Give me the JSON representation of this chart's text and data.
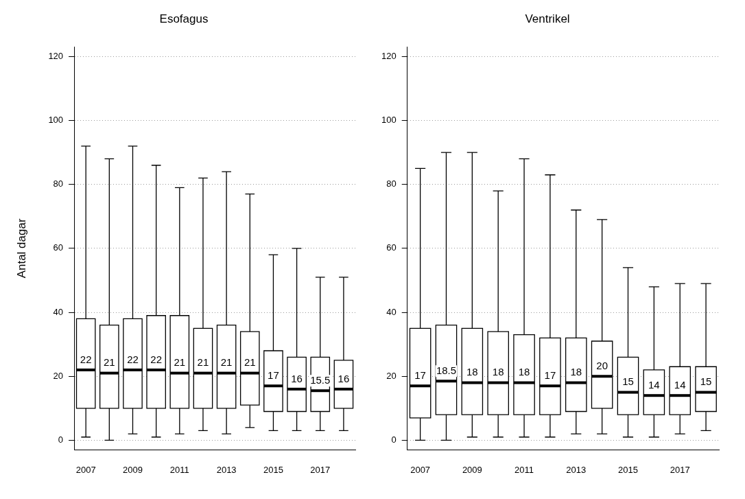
{
  "chart_data": [
    {
      "type": "box",
      "title": "Esofagus",
      "ylabel": "Antal dagar",
      "categories": [
        "2007",
        null,
        "2009",
        null,
        "2011",
        null,
        "2013",
        null,
        "2015",
        null,
        "2017",
        null
      ],
      "ylim": [
        -3,
        123
      ],
      "yticks": [
        0,
        20,
        40,
        60,
        80,
        100,
        120
      ],
      "grid": "y",
      "color": "#ffffff",
      "value_labels": [
        "22",
        "21",
        "22",
        "22",
        "21",
        "21",
        "21",
        "21",
        "17",
        "16",
        "15.5",
        "16"
      ],
      "boxes": [
        {
          "low": 1,
          "q1": 10,
          "median": 22,
          "q3": 38,
          "high": 92
        },
        {
          "low": 0,
          "q1": 10,
          "median": 21,
          "q3": 36,
          "high": 88
        },
        {
          "low": 2,
          "q1": 10,
          "median": 22,
          "q3": 38,
          "high": 92
        },
        {
          "low": 1,
          "q1": 10,
          "median": 22,
          "q3": 39,
          "high": 86
        },
        {
          "low": 2,
          "q1": 10,
          "median": 21,
          "q3": 39,
          "high": 79
        },
        {
          "low": 3,
          "q1": 10,
          "median": 21,
          "q3": 35,
          "high": 82
        },
        {
          "low": 2,
          "q1": 10,
          "median": 21,
          "q3": 36,
          "high": 84
        },
        {
          "low": 4,
          "q1": 11,
          "median": 21,
          "q3": 34,
          "high": 77
        },
        {
          "low": 3,
          "q1": 9,
          "median": 17,
          "q3": 28,
          "high": 58
        },
        {
          "low": 3,
          "q1": 9,
          "median": 16,
          "q3": 26,
          "high": 60
        },
        {
          "low": 3,
          "q1": 9,
          "median": 15.5,
          "q3": 26,
          "high": 51
        },
        {
          "low": 3,
          "q1": 10,
          "median": 16,
          "q3": 25,
          "high": 51
        }
      ]
    },
    {
      "type": "box",
      "title": "Ventrikel",
      "categories": [
        "2007",
        null,
        "2009",
        null,
        "2011",
        null,
        "2013",
        null,
        "2015",
        null,
        "2017",
        null
      ],
      "ylim": [
        -3,
        123
      ],
      "yticks": [
        0,
        20,
        40,
        60,
        80,
        100,
        120
      ],
      "grid": "y",
      "color": "#ffffff",
      "value_labels": [
        "17",
        "18.5",
        "18",
        "18",
        "18",
        "17",
        "18",
        "20",
        "15",
        "14",
        "14",
        "15"
      ],
      "boxes": [
        {
          "low": 0,
          "q1": 7,
          "median": 17,
          "q3": 35,
          "high": 85
        },
        {
          "low": 0,
          "q1": 8,
          "median": 18.5,
          "q3": 36,
          "high": 90
        },
        {
          "low": 1,
          "q1": 8,
          "median": 18,
          "q3": 35,
          "high": 90
        },
        {
          "low": 1,
          "q1": 8,
          "median": 18,
          "q3": 34,
          "high": 78
        },
        {
          "low": 1,
          "q1": 8,
          "median": 18,
          "q3": 33,
          "high": 88
        },
        {
          "low": 1,
          "q1": 8,
          "median": 17,
          "q3": 32,
          "high": 83
        },
        {
          "low": 2,
          "q1": 9,
          "median": 18,
          "q3": 32,
          "high": 72
        },
        {
          "low": 2,
          "q1": 10,
          "median": 20,
          "q3": 31,
          "high": 69
        },
        {
          "low": 1,
          "q1": 8,
          "median": 15,
          "q3": 26,
          "high": 54
        },
        {
          "low": 1,
          "q1": 8,
          "median": 14,
          "q3": 22,
          "high": 48
        },
        {
          "low": 2,
          "q1": 8,
          "median": 14,
          "q3": 23,
          "high": 49
        },
        {
          "low": 3,
          "q1": 9,
          "median": 15,
          "q3": 23,
          "high": 49
        }
      ]
    }
  ]
}
